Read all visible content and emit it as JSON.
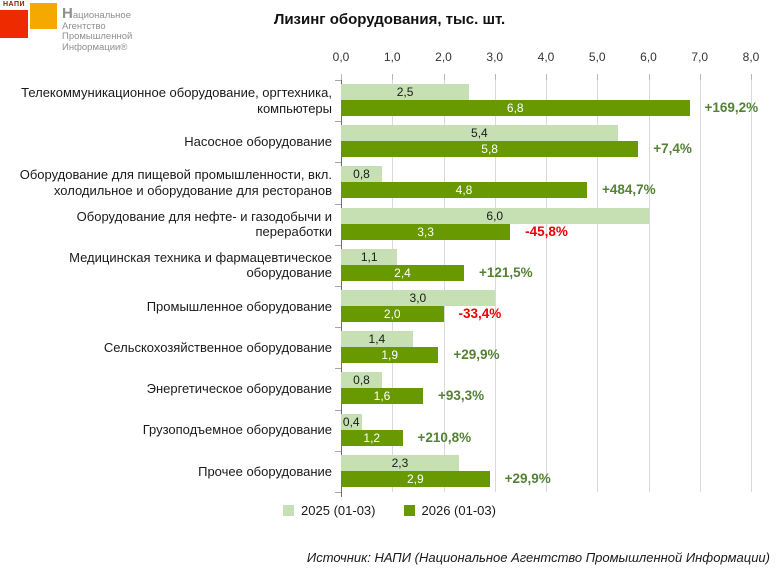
{
  "logo": {
    "brand_small": "НАПИ",
    "text_lines": [
      "Национальное",
      "Агентство",
      "Промышленной",
      "Информации®"
    ],
    "red_color": "#ee2b00",
    "orange_color": "#f5a800"
  },
  "title": "Лизинг оборудования, тыс. шт.",
  "source": "Источник: НАПИ (Национальное Агентство Промышленной Информации)",
  "chart_data": {
    "type": "bar",
    "orientation": "horizontal",
    "title": "Лизинг оборудования, тыс. шт.",
    "categories": [
      "Телекоммуникационное оборудование, оргтехника, компьютеры",
      "Насосное оборудование",
      "Оборудование для пищевой промышленности, вкл. холодильное и оборудование для ресторанов",
      "Оборудование для нефте- и газодобычи и переработки",
      "Медицинская техника и фармацевтическое оборудование",
      "Промышленное оборудование",
      "Сельскохозяйственное оборудование",
      "Энергетическое оборудование",
      "Грузоподъемное оборудование",
      "Прочее оборудование"
    ],
    "series": [
      {
        "name": "2025 (01-03)",
        "color": "#c6e0b4",
        "values": [
          2.5,
          5.4,
          0.8,
          6.0,
          1.1,
          3.0,
          1.4,
          0.8,
          0.4,
          2.3
        ]
      },
      {
        "name": "2026 (01-03)",
        "color": "#689900",
        "values": [
          6.8,
          5.8,
          4.8,
          3.3,
          2.4,
          2.0,
          1.9,
          1.6,
          1.2,
          2.9
        ]
      }
    ],
    "change_labels": [
      "+169,2%",
      "+7,4%",
      "+484,7%",
      "-45,8%",
      "+121,5%",
      "-33,4%",
      "+29,9%",
      "+93,3%",
      "+210,8%",
      "+29,9%"
    ],
    "xlim": [
      0,
      8
    ],
    "x_ticks": [
      "0,0",
      "1,0",
      "2,0",
      "3,0",
      "4,0",
      "5,0",
      "6,0",
      "7,0",
      "8,0"
    ],
    "grid": true,
    "legend_position": "bottom",
    "colors": {
      "positive_change": "#548235",
      "negative_change": "#ee0000",
      "gridline": "#d9d9d9"
    }
  }
}
